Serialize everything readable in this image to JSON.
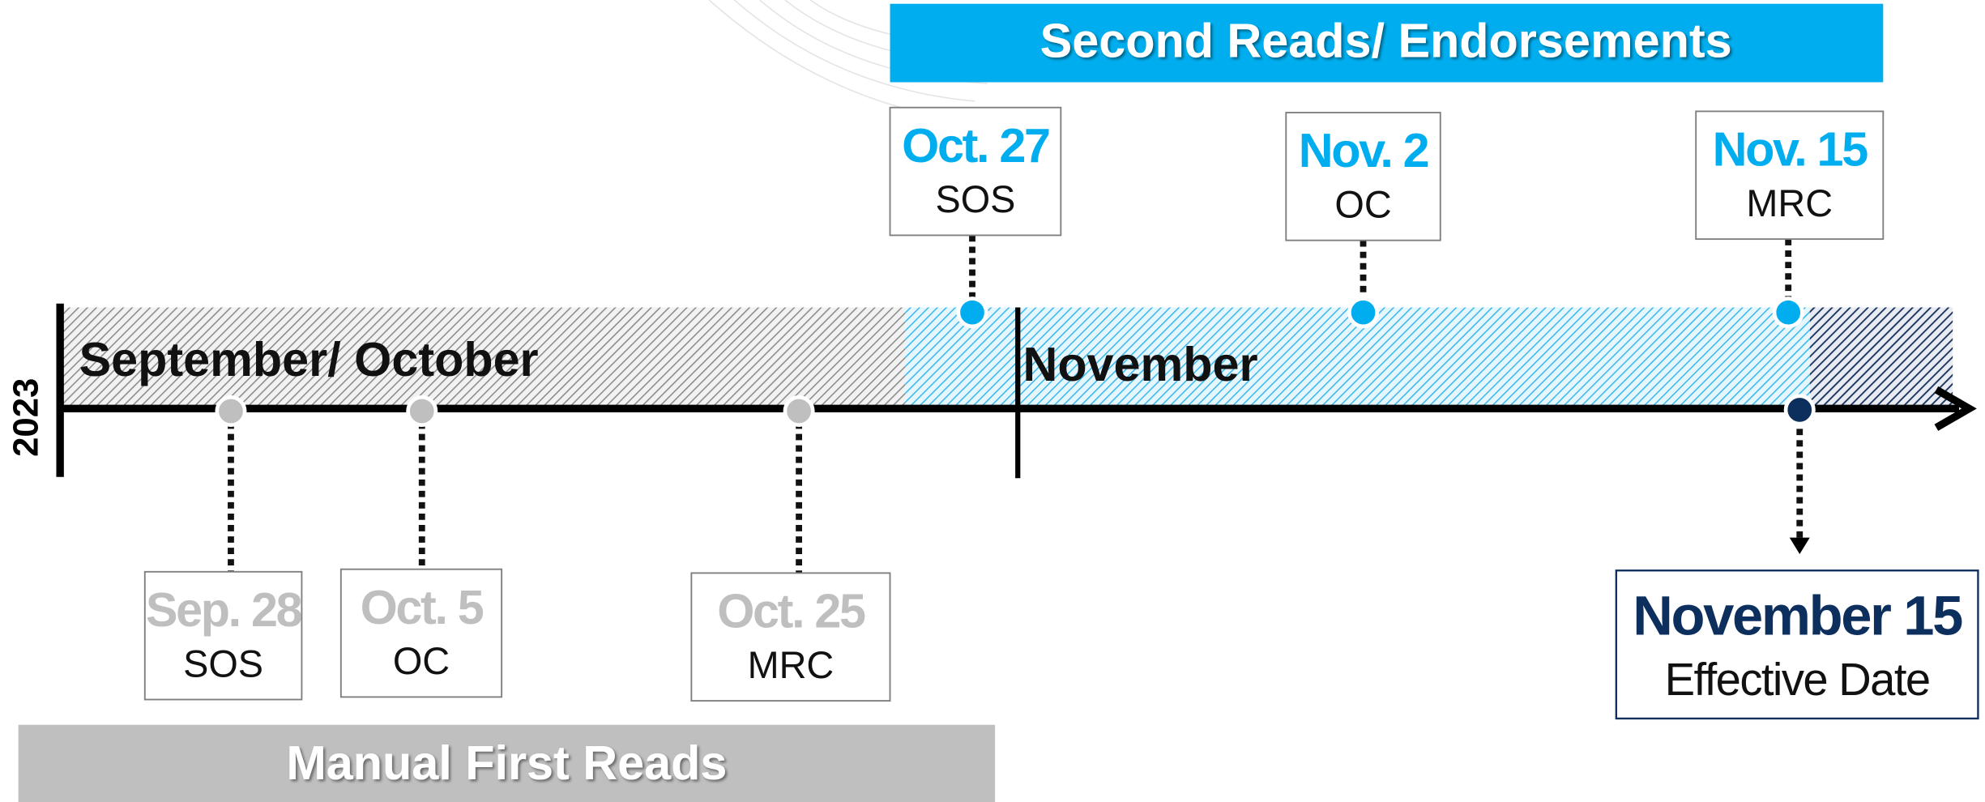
{
  "banners": {
    "second_reads": "Second Reads/ Endorsements",
    "first_reads": "Manual First Reads"
  },
  "year": "2023",
  "months": [
    "September/ October",
    "November"
  ],
  "first_reads": [
    {
      "date": "Sep. 28",
      "body": "SOS"
    },
    {
      "date": "Oct. 5",
      "body": "OC"
    },
    {
      "date": "Oct. 25",
      "body": "MRC"
    }
  ],
  "second_reads": [
    {
      "date": "Oct. 27",
      "body": "SOS"
    },
    {
      "date": "Nov. 2",
      "body": "OC"
    },
    {
      "date": "Nov. 15",
      "body": "MRC"
    }
  ],
  "effective": {
    "date": "November 15",
    "label": "Effective Date"
  }
}
